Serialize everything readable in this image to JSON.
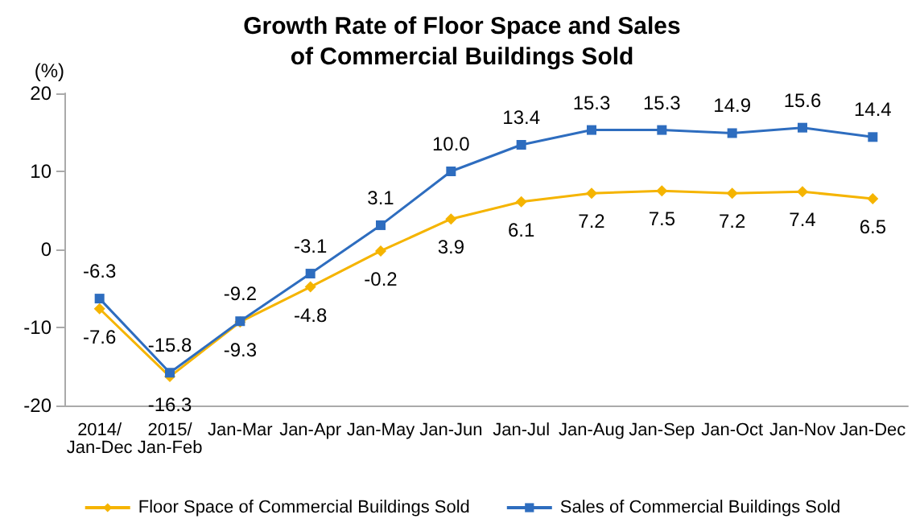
{
  "chart_data": {
    "type": "line",
    "title": "Growth Rate of Floor Space and Sales\nof Commercial Buildings Sold",
    "ylabel": "(%)",
    "categories": [
      "2014/Jan-Dec",
      "2015/Jan-Feb",
      "Jan-Mar",
      "Jan-Apr",
      "Jan-May",
      "Jan-Jun",
      "Jan-Jul",
      "Jan-Aug",
      "Jan-Sep",
      "Jan-Oct",
      "Jan-Nov",
      "Jan-Dec"
    ],
    "series": [
      {
        "name": "Floor Space of Commercial Buildings Sold",
        "color": "#f5b400",
        "marker": "diamond",
        "values": [
          -7.6,
          -16.3,
          -9.3,
          -4.8,
          -0.2,
          3.9,
          6.1,
          7.2,
          7.5,
          7.2,
          7.4,
          6.5
        ],
        "value_labels": [
          "-7.6",
          "-16.3",
          "-9.3",
          "-4.8",
          "-0.2",
          "3.9",
          "6.1",
          "7.2",
          "7.5",
          "7.2",
          "7.4",
          "6.5"
        ]
      },
      {
        "name": "Sales of Commercial Buildings Sold",
        "color": "#2e6dbf",
        "marker": "square",
        "values": [
          -6.3,
          -15.8,
          -9.2,
          -3.1,
          3.1,
          10.0,
          13.4,
          15.3,
          15.3,
          14.9,
          15.6,
          14.4
        ],
        "value_labels": [
          "-6.3",
          "-15.8",
          "-9.2",
          "-3.1",
          "3.1",
          "10.0",
          "13.4",
          "15.3",
          "15.3",
          "14.9",
          "15.6",
          "14.4"
        ]
      }
    ],
    "ylim": [
      -20,
      20
    ],
    "yticks": [
      -20,
      -10,
      0,
      10,
      20
    ],
    "grid": false,
    "legend": "bottom"
  }
}
